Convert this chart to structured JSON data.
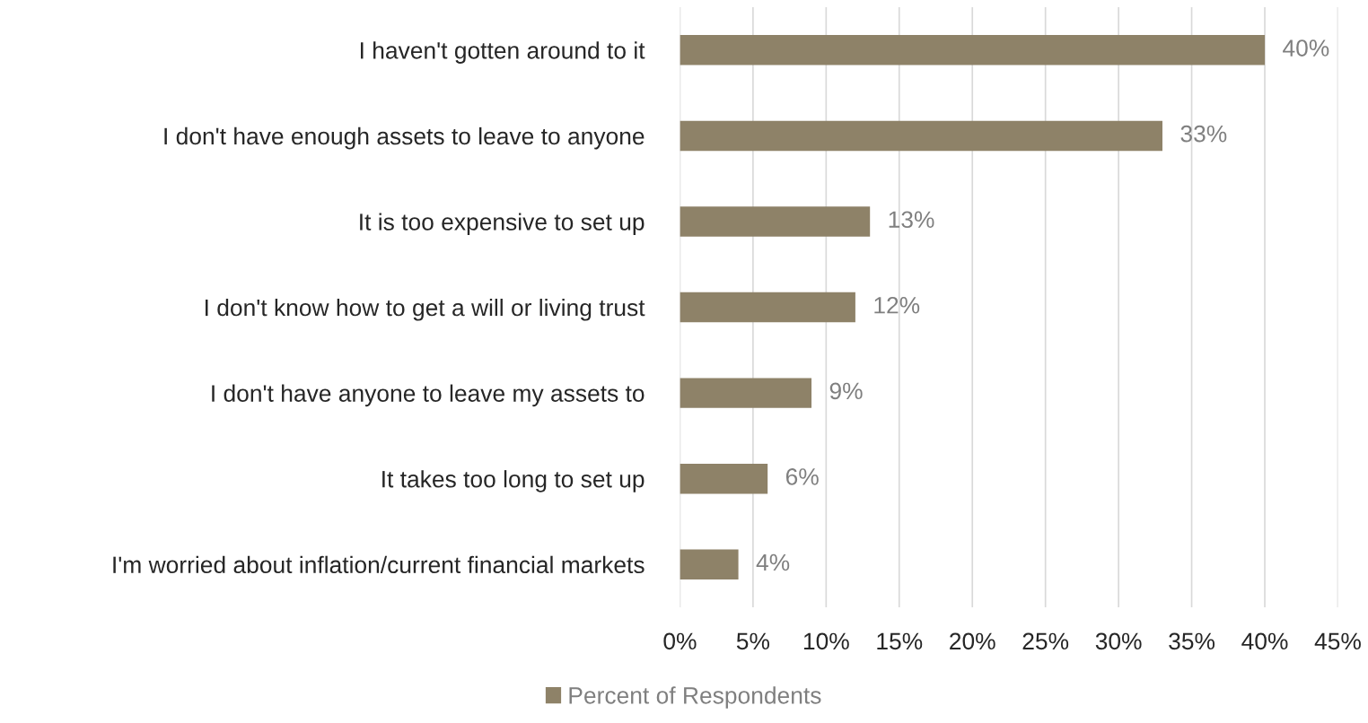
{
  "chart_data": {
    "type": "bar",
    "orientation": "horizontal",
    "categories": [
      "I haven't gotten around to it",
      "I don't have enough assets to leave to anyone",
      "It is too expensive to set up",
      "I don't know how to get a will or living trust",
      "I don't have anyone to leave my assets to",
      "It takes too long to set up",
      "I'm worried about inflation/current financial markets"
    ],
    "series": [
      {
        "name": "Percent of Respondents",
        "color": "#8e8268",
        "values": [
          40,
          33,
          13,
          12,
          9,
          6,
          4
        ],
        "value_labels": [
          "40%",
          "33%",
          "13%",
          "12%",
          "9%",
          "6%",
          "4%"
        ]
      }
    ],
    "xlim": [
      0,
      45
    ],
    "xticks": [
      {
        "value": 0,
        "label": "0%"
      },
      {
        "value": 5,
        "label": "5%"
      },
      {
        "value": 10,
        "label": "10%"
      },
      {
        "value": 15,
        "label": "15%"
      },
      {
        "value": 20,
        "label": "20%"
      },
      {
        "value": 25,
        "label": "25%"
      },
      {
        "value": 30,
        "label": "30%"
      },
      {
        "value": 35,
        "label": "35%"
      },
      {
        "value": 40,
        "label": "40%"
      },
      {
        "value": 45,
        "label": "45%"
      }
    ],
    "grid": "x",
    "legend": "bottom"
  }
}
